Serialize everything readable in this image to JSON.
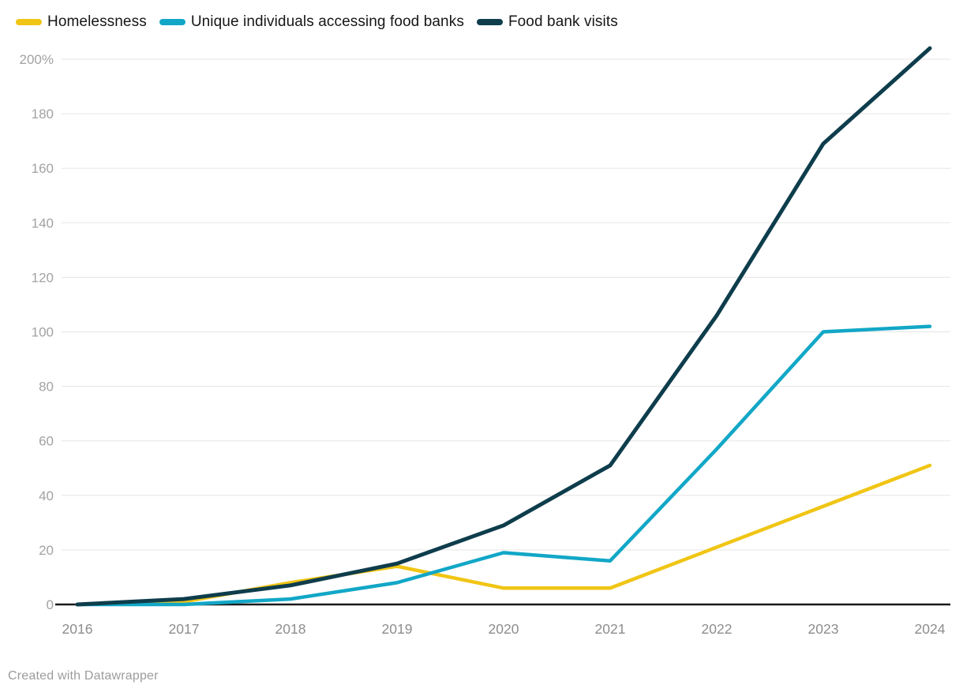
{
  "legend": {
    "position": "top"
  },
  "chart_data": {
    "type": "line",
    "x": [
      2016,
      2017,
      2018,
      2019,
      2020,
      2021,
      2022,
      2023,
      2024
    ],
    "series": [
      {
        "name": "Homelessness",
        "color": "#F0C515",
        "values": [
          0,
          1,
          8,
          14,
          6,
          6,
          21,
          36,
          51
        ]
      },
      {
        "name": "Unique individuals accessing food banks",
        "color": "#12A7C7",
        "values": [
          0,
          0,
          2,
          8,
          19,
          16,
          57,
          100,
          102
        ]
      },
      {
        "name": "Food bank visits",
        "color": "#0E3D4C",
        "values": [
          0,
          2,
          7,
          15,
          29,
          51,
          106,
          169,
          204
        ]
      }
    ],
    "title": "",
    "xlabel": "",
    "ylabel": "",
    "ylim": [
      0,
      200
    ],
    "yticks": [
      0,
      20,
      40,
      60,
      80,
      100,
      120,
      140,
      160,
      180,
      200
    ],
    "ytick_top_label": "200%",
    "grid": "horizontal",
    "gridline_color": "#e5e5e5",
    "axis_line_color": "#1a1a1a",
    "ytick_label_color": "#a2a2a2",
    "xtick_label_color": "#8d8d8d",
    "legend_position": "top"
  },
  "footer": {
    "credit": "Created with Datawrapper"
  }
}
